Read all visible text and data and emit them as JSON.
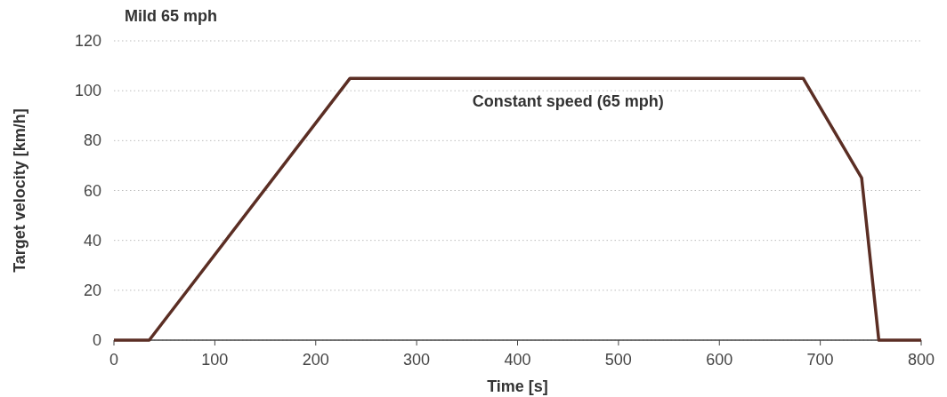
{
  "chart_data": {
    "type": "line",
    "title": "Mild 65 mph",
    "xlabel": "Time [s]",
    "ylabel": "Target velocity [km/h]",
    "x": [
      0,
      35,
      234,
      683,
      741,
      758,
      800
    ],
    "series": [
      {
        "color": "#5b2e24",
        "values": [
          0,
          0,
          105,
          105,
          65,
          0,
          0
        ]
      }
    ],
    "xlim": [
      0,
      800
    ],
    "xticks": [
      0,
      100,
      200,
      300,
      400,
      500,
      600,
      700,
      800
    ],
    "ylim": [
      0,
      120
    ],
    "yticks": [
      0,
      20,
      40,
      60,
      80,
      100,
      120
    ],
    "grid": "y",
    "line_style": "solid",
    "annotations": [
      {
        "text": "Constant speed (65 mph)",
        "x": 450,
        "y": 105
      }
    ]
  }
}
